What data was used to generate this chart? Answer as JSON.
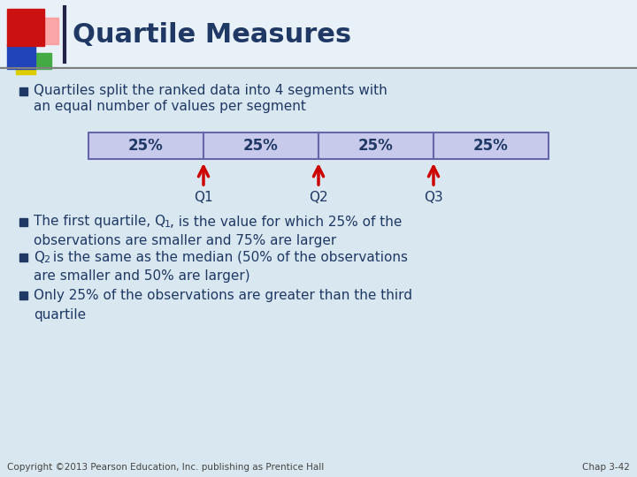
{
  "title": "Quartile Measures",
  "title_color": "#1F3864",
  "slide_bg": "#D9E8F0",
  "bullet_color": "#1F3864",
  "box_labels": [
    "25%",
    "25%",
    "25%",
    "25%"
  ],
  "quartile_labels": [
    "Q1",
    "Q2",
    "Q3"
  ],
  "box_fill": "#C8CAEC",
  "box_edge": "#6666AA",
  "arrow_color": "#CC0000",
  "footer": "Copyright ©2013 Pearson Education, Inc. publishing as Prentice Hall",
  "footer_right": "Chap 3-42",
  "text_color": "#1F3864",
  "header_line_color": "#808080",
  "title_bar_color": "#222244",
  "red_sq": "#CC1111",
  "pink_sq": "#FF9999",
  "blue_sq": "#2244BB",
  "green_sq": "#44AA44",
  "yellow_sq": "#DDCC00"
}
